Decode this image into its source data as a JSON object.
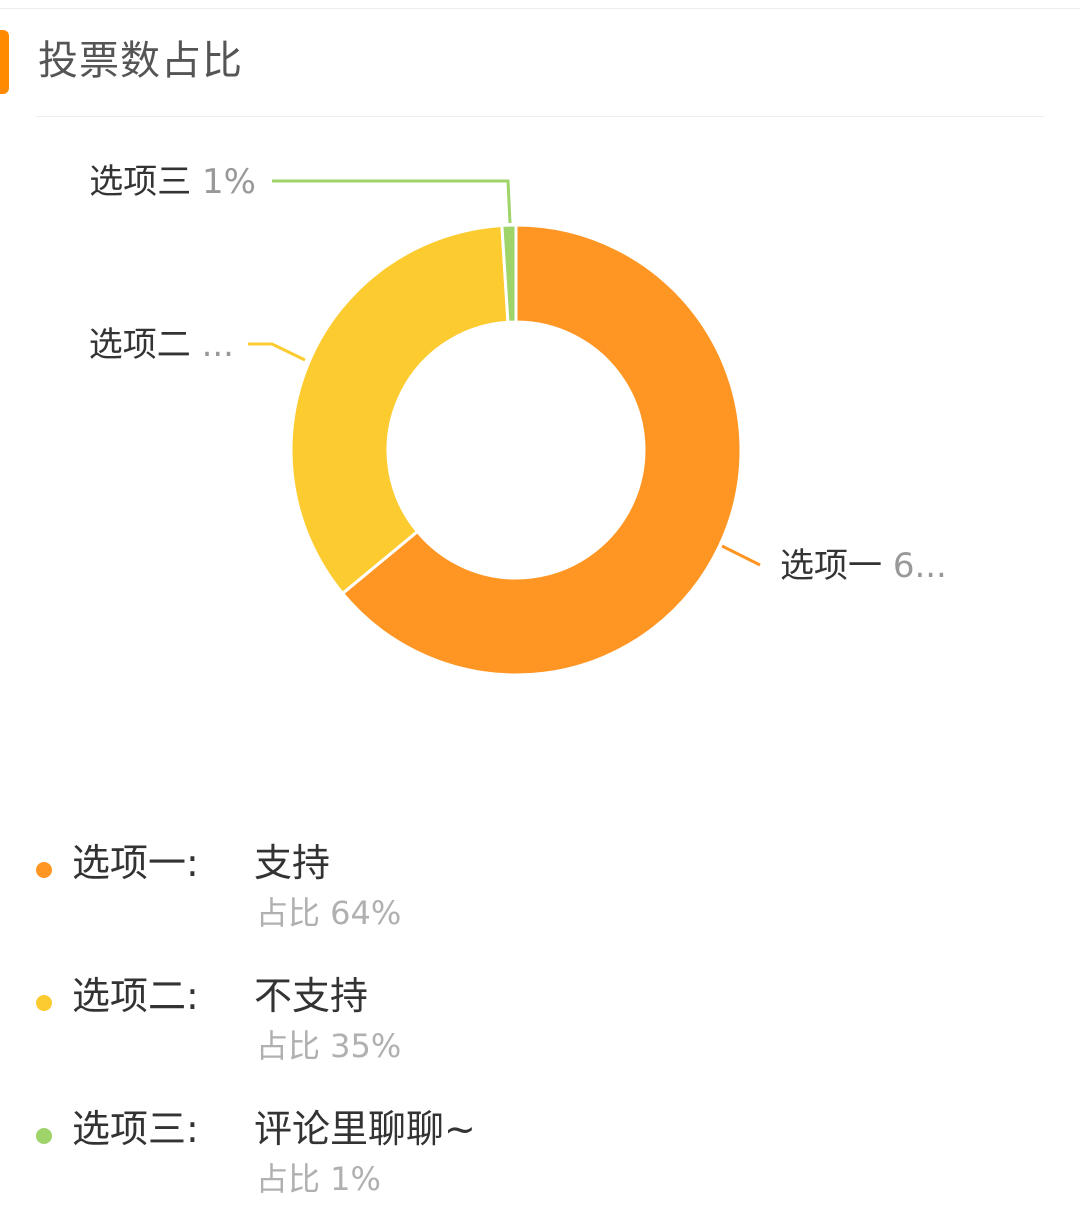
{
  "section": {
    "title": "投票数占比",
    "accent_color": "#FF8A00"
  },
  "chart_data": {
    "type": "pie",
    "variant": "donut",
    "title": "",
    "slices": [
      {
        "label": "选项一",
        "value": 64,
        "callout": "选项一 6...",
        "color": "#FF9623"
      },
      {
        "label": "选项二",
        "value": 35,
        "callout": "选项二 ...",
        "color": "#FCCB2F"
      },
      {
        "label": "选项三",
        "value": 1,
        "callout": "选项三 1%",
        "color": "#9ED46A"
      }
    ],
    "legend_position": "bottom"
  },
  "legend": {
    "items": [
      {
        "label": "选项一:",
        "value": "支持",
        "percent": "占比 64%",
        "color": "#FF9623"
      },
      {
        "label": "选项二:",
        "value": "不支持",
        "percent": "占比 35%",
        "color": "#FCCB2F"
      },
      {
        "label": "选项三:",
        "value": "评论里聊聊~",
        "percent": "占比 1%",
        "color": "#9ED46A"
      }
    ]
  }
}
